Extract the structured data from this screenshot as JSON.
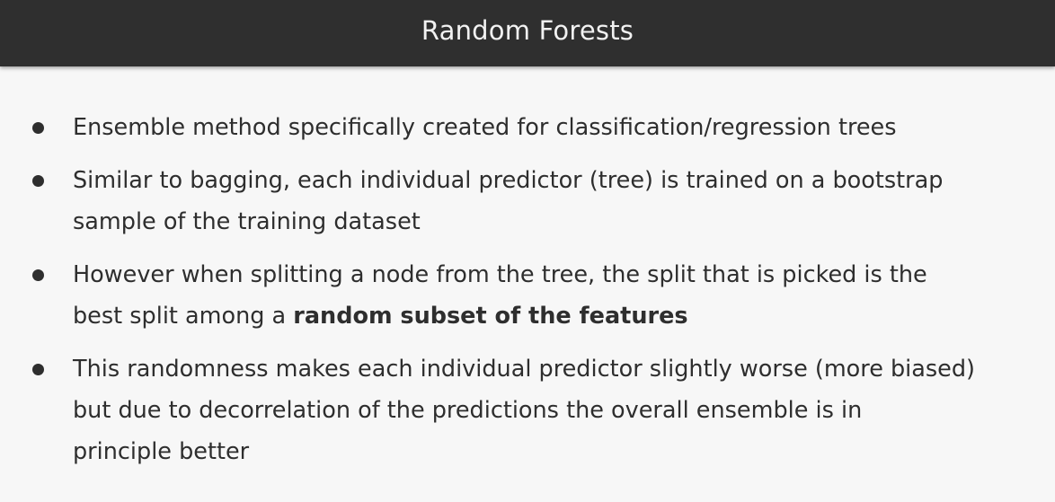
{
  "slide": {
    "title": "Random Forests",
    "bullets": [
      {
        "lines": [
          "Ensemble method specifically created for classification/regression trees"
        ]
      },
      {
        "lines": [
          "Similar to bagging, each individual predictor (tree) is trained on a bootstrap",
          "sample of the training dataset"
        ]
      },
      {
        "line1": "However when splitting a node from the tree, the split that is picked is the",
        "line2_prefix": "best split among a ",
        "line2_bold": "random subset of the features"
      },
      {
        "lines": [
          "This randomness makes each individual predictor slightly worse (more biased)",
          "but due to decorrelation of the predictions the overall ensemble is in",
          "principle better"
        ]
      }
    ]
  },
  "colors": {
    "title_bar": "#2f2f2f",
    "title_text": "#f2f2f2",
    "background": "#f7f7f7",
    "body_text": "#2e2e2e"
  }
}
